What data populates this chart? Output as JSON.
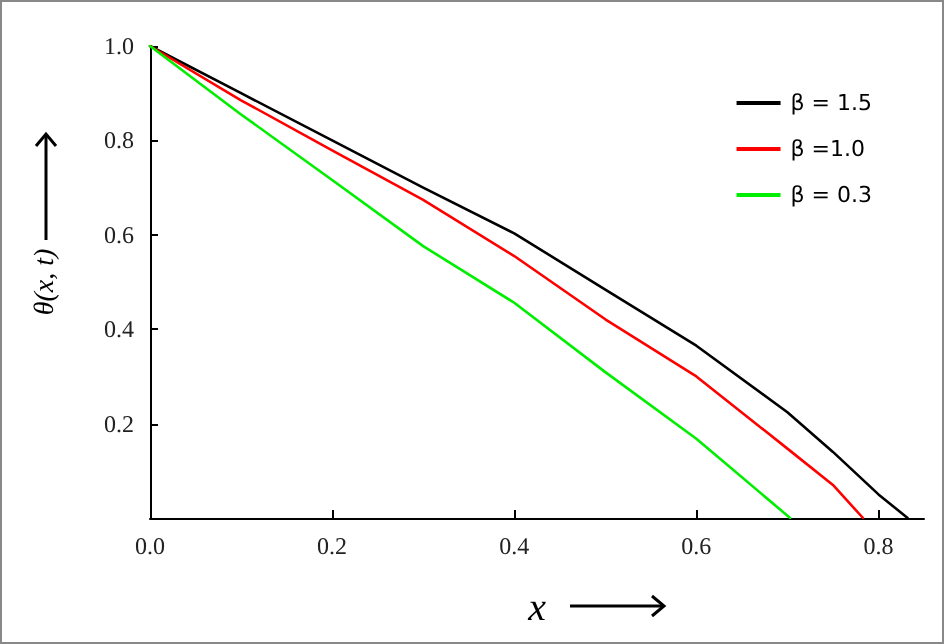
{
  "chart_data": {
    "type": "line",
    "xlabel": "x",
    "ylabel": "θ(x, t)",
    "xlim": [
      0,
      0.85
    ],
    "xticks": [
      {
        "value": 0,
        "label": "0.0"
      },
      0.2,
      0.4,
      0.6,
      0.8
    ],
    "ylim": [
      0,
      1.0
    ],
    "yticks": [
      {
        "value": 0,
        "label": null
      },
      0.2,
      0.4,
      0.6,
      0.8,
      {
        "value": 1.0,
        "label": "1.0"
      }
    ],
    "grid": false,
    "legend": "top right",
    "marker": "none",
    "line_style": "solid",
    "series": [
      {
        "name": "β = 1.5",
        "color": "#000000",
        "x": [
          0,
          0.1,
          0.2,
          0.3,
          0.4,
          0.5,
          0.6,
          0.7,
          0.75,
          0.8,
          0.832
        ],
        "values": [
          1.0,
          0.9,
          0.8,
          0.7,
          0.603,
          0.484,
          0.365,
          0.224,
          0.14,
          0.05,
          0
        ]
      },
      {
        "name": "β =1.0",
        "color": "#ff0000",
        "x": [
          0,
          0.1,
          0.2,
          0.3,
          0.4,
          0.5,
          0.6,
          0.7,
          0.75,
          0.783
        ],
        "values": [
          1.0,
          0.885,
          0.779,
          0.674,
          0.555,
          0.421,
          0.3,
          0.147,
          0.07,
          0
        ]
      },
      {
        "name": "β = 0.3",
        "color": "#00ee00",
        "x": [
          0,
          0.1,
          0.2,
          0.3,
          0.4,
          0.5,
          0.6,
          0.703
        ],
        "values": [
          1.0,
          0.855,
          0.716,
          0.576,
          0.456,
          0.309,
          0.168,
          0
        ]
      }
    ]
  }
}
